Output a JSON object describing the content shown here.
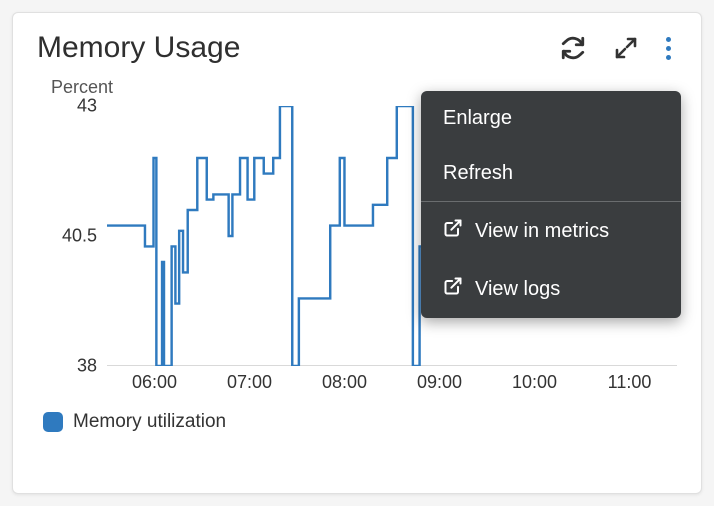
{
  "widget": {
    "title": "Memory Usage",
    "ylabel": "Percent",
    "legend_label": "Memory utilization"
  },
  "toolbar": {
    "refresh_icon": "refresh",
    "expand_icon": "expand",
    "menu_icon": "kebab"
  },
  "dropdown": {
    "items": [
      {
        "label": "Enlarge",
        "external": false
      },
      {
        "label": "Refresh",
        "external": false
      },
      {
        "label": "View in metrics",
        "external": true
      },
      {
        "label": "View logs",
        "external": true
      }
    ]
  },
  "chart": {
    "type": "line",
    "x_start": 5.5,
    "x_end": 11.5,
    "xtick_start": 6,
    "xtick_end": 11,
    "xtick_step": 1,
    "xtick_labels": [
      "06:00",
      "07:00",
      "08:00",
      "09:00",
      "10:00",
      "11:00"
    ],
    "ylim": [
      38,
      43
    ],
    "ytick_values": [
      38,
      40.5,
      43
    ],
    "ytick_labels": [
      "38",
      "40.5",
      "43"
    ],
    "background_color": "#ffffff",
    "baseline_color": "#d9d9d9",
    "line_color": "#2f7abf",
    "line_width": 2.4,
    "text_color": "#333333",
    "title_fontsize": 30,
    "label_fontsize": 18,
    "legend_swatch_color": "#2f7abf",
    "series": [
      [
        5.5,
        40.7
      ],
      [
        5.9,
        40.7
      ],
      [
        5.9,
        40.3
      ],
      [
        5.99,
        40.3
      ],
      [
        5.99,
        42.0
      ],
      [
        6.02,
        42.0
      ],
      [
        6.02,
        38.0
      ],
      [
        6.08,
        38.0
      ],
      [
        6.08,
        40.0
      ],
      [
        6.1,
        40.0
      ],
      [
        6.1,
        38.0
      ],
      [
        6.18,
        38.0
      ],
      [
        6.18,
        40.3
      ],
      [
        6.22,
        40.3
      ],
      [
        6.22,
        39.2
      ],
      [
        6.26,
        39.2
      ],
      [
        6.26,
        40.6
      ],
      [
        6.3,
        40.6
      ],
      [
        6.3,
        39.8
      ],
      [
        6.35,
        39.8
      ],
      [
        6.35,
        41.0
      ],
      [
        6.45,
        41.0
      ],
      [
        6.45,
        42.0
      ],
      [
        6.55,
        42.0
      ],
      [
        6.55,
        41.2
      ],
      [
        6.62,
        41.2
      ],
      [
        6.62,
        41.3
      ],
      [
        6.78,
        41.3
      ],
      [
        6.78,
        40.5
      ],
      [
        6.82,
        40.5
      ],
      [
        6.82,
        41.3
      ],
      [
        6.9,
        41.3
      ],
      [
        6.9,
        42.0
      ],
      [
        6.98,
        42.0
      ],
      [
        6.98,
        41.2
      ],
      [
        7.05,
        41.2
      ],
      [
        7.05,
        42.0
      ],
      [
        7.15,
        42.0
      ],
      [
        7.15,
        41.7
      ],
      [
        7.25,
        41.7
      ],
      [
        7.25,
        42.0
      ],
      [
        7.32,
        42.0
      ],
      [
        7.32,
        43.0
      ],
      [
        7.45,
        43.0
      ],
      [
        7.45,
        38.0
      ],
      [
        7.52,
        38.0
      ],
      [
        7.52,
        39.3
      ],
      [
        7.85,
        39.3
      ],
      [
        7.85,
        40.7
      ],
      [
        7.95,
        40.7
      ],
      [
        7.95,
        42.0
      ],
      [
        8.0,
        42.0
      ],
      [
        8.0,
        40.7
      ],
      [
        8.3,
        40.7
      ],
      [
        8.3,
        41.1
      ],
      [
        8.45,
        41.1
      ],
      [
        8.45,
        42.0
      ],
      [
        8.55,
        42.0
      ],
      [
        8.55,
        43.0
      ],
      [
        8.72,
        43.0
      ],
      [
        8.72,
        38.0
      ],
      [
        8.79,
        38.0
      ],
      [
        8.79,
        40.3
      ],
      [
        8.82,
        40.3
      ],
      [
        8.82,
        40.2
      ],
      [
        8.88,
        40.2
      ],
      [
        8.88,
        42.0
      ],
      [
        8.93,
        42.0
      ],
      [
        8.93,
        40.4
      ],
      [
        9.05,
        40.4
      ]
    ]
  }
}
